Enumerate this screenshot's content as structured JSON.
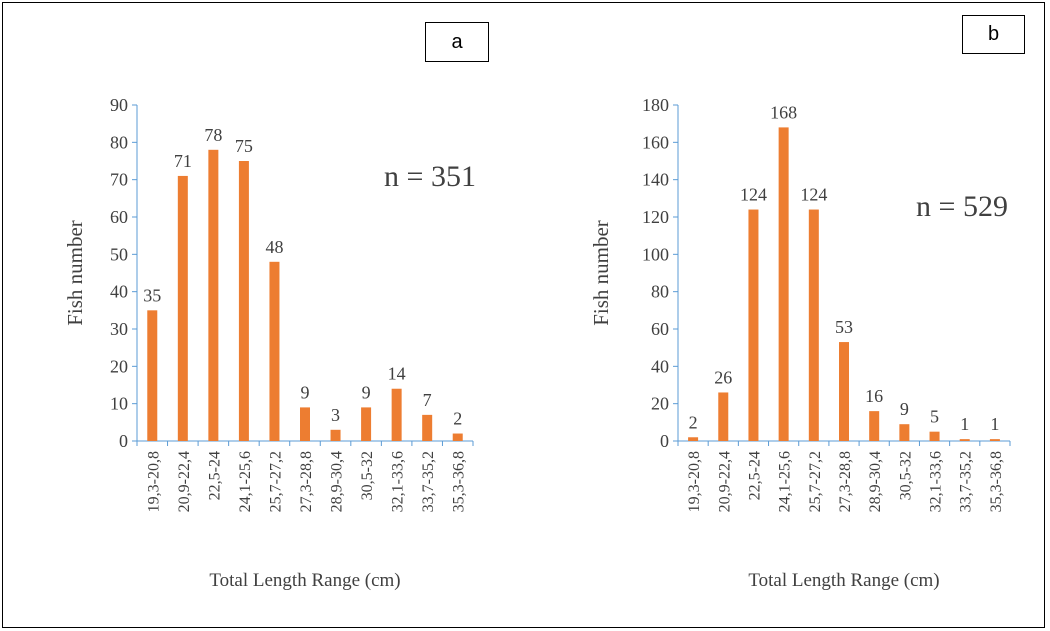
{
  "chart_data": [
    {
      "type": "bar",
      "panel_label": "a",
      "categories": [
        "19,3-20,8",
        "20,9-22,4",
        "22,5-24",
        "24,1-25,6",
        "25,7-27,2",
        "27,3-28,8",
        "28,9-30,4",
        "30,5-32",
        "32,1-33,6",
        "33,7-35,2",
        "35,3-36,8"
      ],
      "values": [
        35,
        71,
        78,
        75,
        48,
        9,
        3,
        9,
        14,
        7,
        2
      ],
      "data_labels": [
        "35",
        "71",
        "78",
        "75",
        "48",
        "9",
        "3",
        "9",
        "14",
        "7",
        "2"
      ],
      "xlabel": "Total Length Range (cm)",
      "ylabel": "Fish number",
      "ylim": [
        0,
        90
      ],
      "yticks": [
        "0",
        "10",
        "20",
        "30",
        "40",
        "50",
        "60",
        "70",
        "80",
        "90"
      ],
      "annotation": "n = 351",
      "bar_color": "#ED7D31",
      "axis_color": "#5B9BD5",
      "grid": false
    },
    {
      "type": "bar",
      "panel_label": "b",
      "categories": [
        "19,3-20,8",
        "20,9-22,4",
        "22,5-24",
        "24,1-25,6",
        "25,7-27,2",
        "27,3-28,8",
        "28,9-30,4",
        "30,5-32",
        "32,1-33,6",
        "33,7-35,2",
        "35,3-36,8"
      ],
      "values": [
        2,
        26,
        124,
        168,
        124,
        53,
        16,
        9,
        5,
        1,
        1
      ],
      "data_labels": [
        "2",
        "26",
        "124",
        "168",
        "124",
        "53",
        "16",
        "9",
        "5",
        "1",
        "1"
      ],
      "xlabel": "Total Length Range (cm)",
      "ylabel": "Fish number",
      "ylim": [
        0,
        180
      ],
      "yticks": [
        "0",
        "20",
        "40",
        "60",
        "80",
        "100",
        "120",
        "140",
        "160",
        "180"
      ],
      "annotation": "n = 529",
      "bar_color": "#ED7D31",
      "axis_color": "#5B9BD5",
      "grid": false
    }
  ]
}
